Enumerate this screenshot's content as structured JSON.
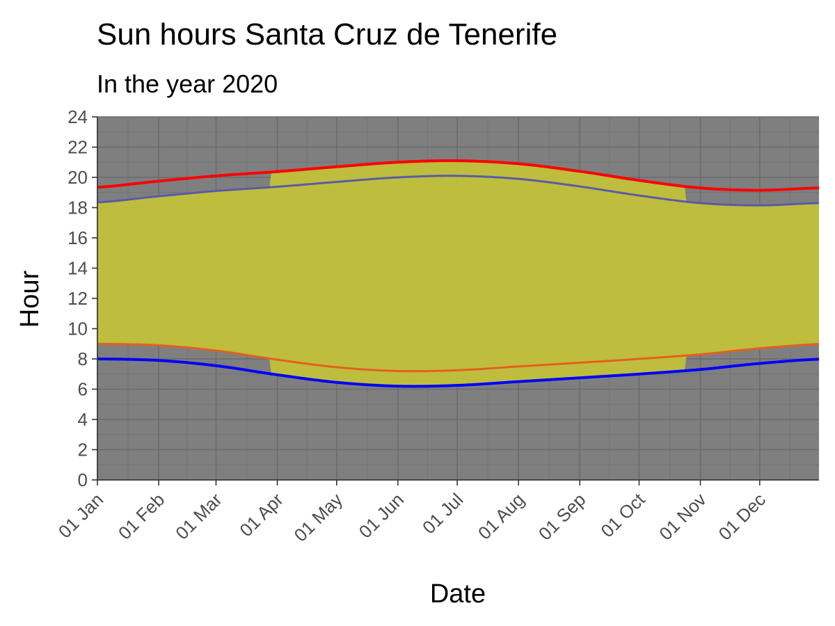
{
  "chart_data": {
    "type": "area",
    "title": "Sun hours Santa Cruz de Tenerife",
    "subtitle": "In the year 2020",
    "xlabel": "Date",
    "ylabel": "Hour",
    "xlim": [
      "2020-01-01",
      "2020-12-31"
    ],
    "ylim": [
      0,
      24
    ],
    "x_ticks": [
      "01 Jan",
      "01 Feb",
      "01 Mar",
      "01 Apr",
      "01 May",
      "01 Jun",
      "01 Jul",
      "01 Aug",
      "01 Sep",
      "01 Oct",
      "01 Nov",
      "01 Dec"
    ],
    "y_ticks": [
      0,
      2,
      4,
      6,
      8,
      10,
      12,
      14,
      16,
      18,
      20,
      22,
      24
    ],
    "grid": true,
    "legend": "none",
    "colors": {
      "panel": "#7f7f7f",
      "grid_major": "#6b6b6b",
      "grid_minor": "#747474",
      "daylight": "#c2c13b",
      "sunset_local": "#ff0000",
      "sunset_utc": "#5a5aa8",
      "sunrise_utc": "#e4601f",
      "sunrise_local": "#0000ff"
    },
    "dst_start": "2020-03-29",
    "dst_end": "2020-10-25",
    "x": [
      "2020-01-01",
      "2020-02-01",
      "2020-03-01",
      "2020-04-01",
      "2020-05-01",
      "2020-06-01",
      "2020-07-01",
      "2020-08-01",
      "2020-09-01",
      "2020-10-01",
      "2020-11-01",
      "2020-12-01",
      "2020-12-31"
    ],
    "series": [
      {
        "values": [
          19.35,
          19.75,
          20.1,
          20.38,
          20.7,
          21.0,
          21.1,
          20.9,
          20.4,
          19.8,
          19.3,
          19.15,
          19.3
        ]
      },
      {
        "values": [
          18.35,
          18.75,
          19.1,
          19.38,
          19.7,
          20.0,
          20.1,
          19.9,
          19.4,
          18.8,
          18.3,
          18.15,
          18.3
        ]
      },
      {
        "values": [
          9.0,
          8.9,
          8.55,
          7.95,
          7.45,
          7.2,
          7.25,
          7.5,
          7.75,
          8.0,
          8.3,
          8.7,
          8.98
        ]
      },
      {
        "values": [
          8.0,
          7.9,
          7.55,
          6.95,
          6.45,
          6.2,
          6.25,
          6.5,
          6.75,
          7.0,
          7.3,
          7.7,
          7.98
        ]
      }
    ]
  }
}
